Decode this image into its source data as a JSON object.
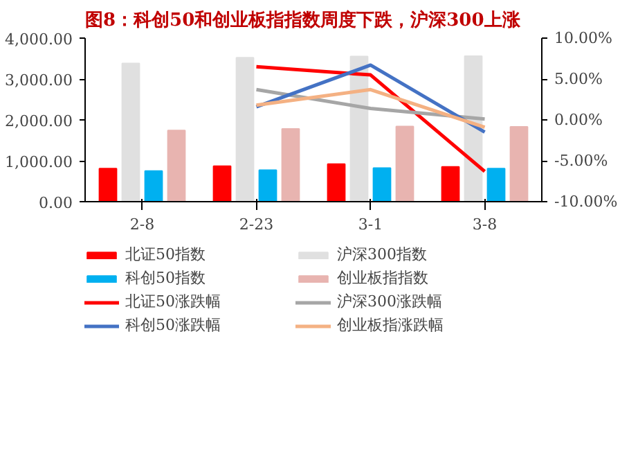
{
  "chart_data": {
    "type": "bar",
    "title": "图8：科创50和创业板指指数周度下跌，沪深300上涨",
    "categories": [
      "2-8",
      "2-23",
      "3-1",
      "3-8"
    ],
    "series": [
      {
        "name": "北证50指数",
        "color": "#ff0000",
        "values": [
          810,
          870,
          920,
          850
        ]
      },
      {
        "name": "沪深300指数",
        "color": "#e0e0e0",
        "values": [
          3380,
          3520,
          3550,
          3560
        ]
      },
      {
        "name": "科创50指数",
        "color": "#00b0f0",
        "values": [
          750,
          770,
          820,
          810
        ]
      },
      {
        "name": "创业板指指数",
        "color": "#e8b4b0",
        "values": [
          1740,
          1780,
          1840,
          1830
        ]
      },
      {
        "name": "北证50涨跌幅",
        "type": "line",
        "axis": "y2",
        "color": "#ff0000",
        "values": [
          null,
          6.5,
          5.5,
          -6.3
        ]
      },
      {
        "name": "沪深300涨跌幅",
        "type": "line",
        "axis": "y2",
        "color": "#a6a6a6",
        "values": [
          null,
          3.7,
          1.4,
          0.1
        ]
      },
      {
        "name": "科创50涨跌幅",
        "type": "line",
        "axis": "y2",
        "color": "#4472c4",
        "values": [
          null,
          1.6,
          6.7,
          -1.5
        ]
      },
      {
        "name": "创业板指涨跌幅",
        "type": "line",
        "axis": "y2",
        "color": "#f4b183",
        "values": [
          null,
          1.8,
          3.7,
          -0.9
        ]
      }
    ],
    "ylim": [
      0,
      4000
    ],
    "yticks": [
      {
        "value": 0,
        "label": "0.00"
      },
      {
        "value": 1000,
        "label": "1,000.00"
      },
      {
        "value": 2000,
        "label": "2,000.00"
      },
      {
        "value": 3000,
        "label": "3,000.00"
      },
      {
        "value": 4000,
        "label": "4,000.00"
      }
    ],
    "y2lim": [
      -10,
      10
    ],
    "y2ticks": [
      {
        "value": -10,
        "label": "-10.00%"
      },
      {
        "value": -5,
        "label": "-5.00%"
      },
      {
        "value": 0,
        "label": "0.00%"
      },
      {
        "value": 5,
        "label": "5.00%"
      },
      {
        "value": 10,
        "label": "10.00%"
      }
    ],
    "legend": "bottom",
    "grid": false
  }
}
